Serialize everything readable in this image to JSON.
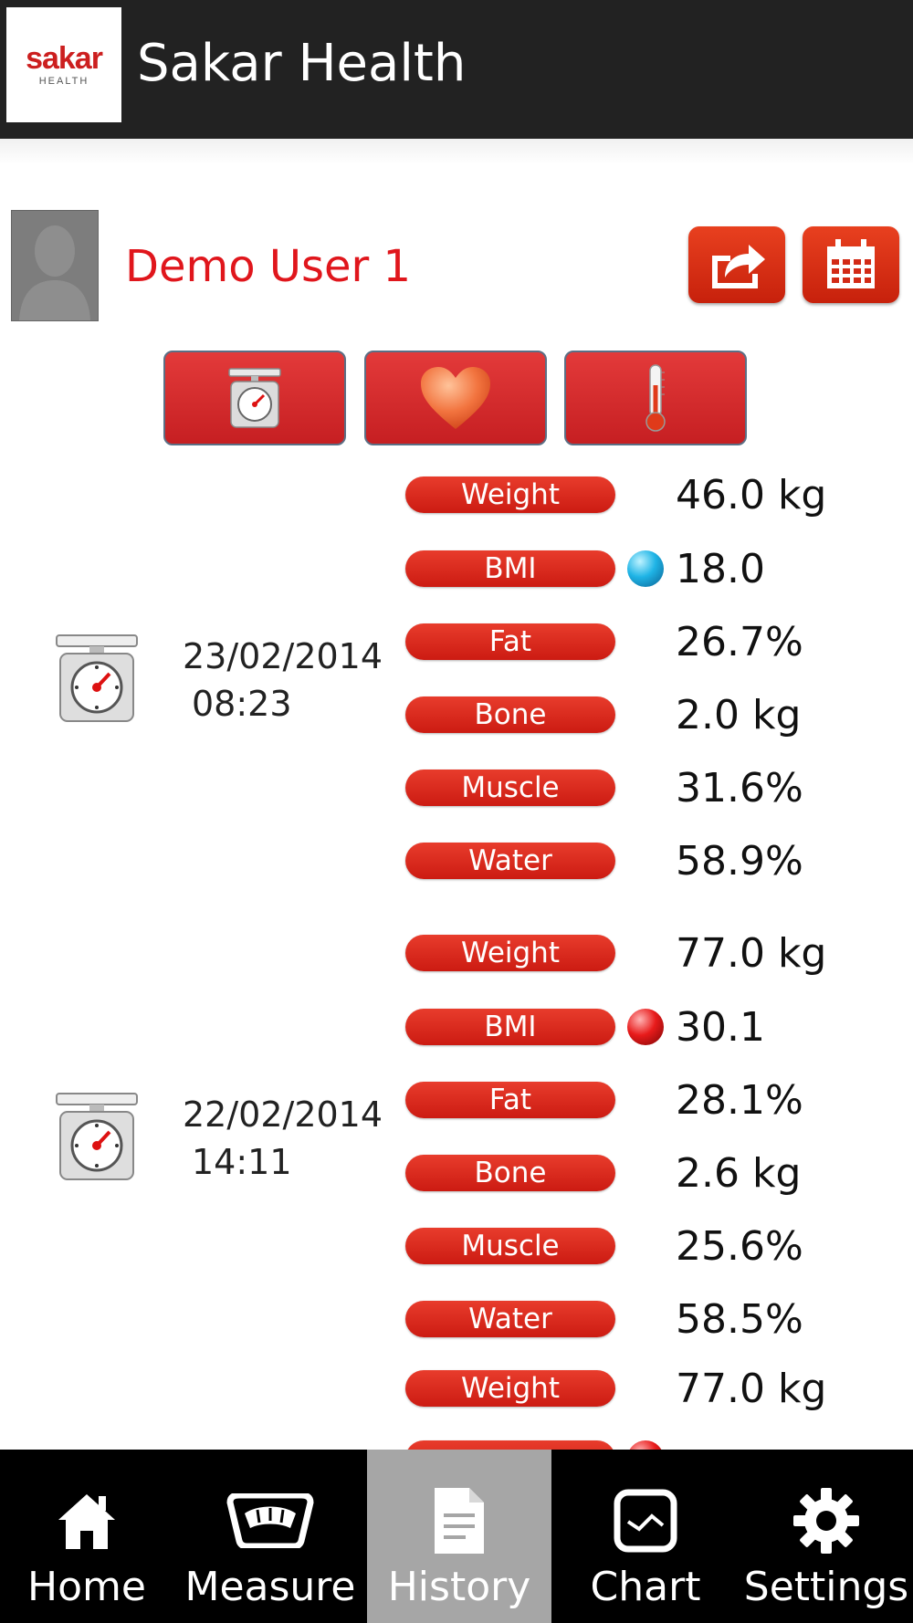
{
  "header": {
    "logo_text": "sakar",
    "logo_sub": "HEALTH",
    "title": "Sakar Health"
  },
  "user": {
    "name": "Demo User 1"
  },
  "toolbar": {
    "share_icon": "share-icon",
    "calendar_icon": "calendar-icon"
  },
  "categories": [
    {
      "icon": "scale-icon",
      "name": "scale"
    },
    {
      "icon": "heart-icon",
      "name": "heart"
    },
    {
      "icon": "thermometer-icon",
      "name": "thermometer"
    }
  ],
  "records": [
    {
      "date": "23/02/2014",
      "time": "08:23",
      "metrics": [
        {
          "label": "Weight",
          "value": "46.0 kg"
        },
        {
          "label": "BMI",
          "value": "18.0",
          "indicator": "blue"
        },
        {
          "label": "Fat",
          "value": "26.7%"
        },
        {
          "label": "Bone",
          "value": "2.0 kg"
        },
        {
          "label": "Muscle",
          "value": "31.6%"
        },
        {
          "label": "Water",
          "value": "58.9%"
        }
      ]
    },
    {
      "date": "22/02/2014",
      "time": "14:11",
      "metrics": [
        {
          "label": "Weight",
          "value": "77.0 kg"
        },
        {
          "label": "BMI",
          "value": "30.1",
          "indicator": "red"
        },
        {
          "label": "Fat",
          "value": "28.1%"
        },
        {
          "label": "Bone",
          "value": "2.6 kg"
        },
        {
          "label": "Muscle",
          "value": "25.6%"
        },
        {
          "label": "Water",
          "value": "58.5%"
        }
      ]
    },
    {
      "date": "",
      "time": "",
      "metrics": [
        {
          "label": "Weight",
          "value": "77.0 kg"
        }
      ]
    }
  ],
  "colors": {
    "accent": "#e0161c",
    "header_bg": "#222222",
    "nav_bg": "#000000",
    "nav_active": "#a6a6a6"
  },
  "nav": [
    {
      "label": "Home",
      "icon": "home-icon",
      "active": false
    },
    {
      "label": "Measure",
      "icon": "scale-dial-icon",
      "active": false
    },
    {
      "label": "History",
      "icon": "document-icon",
      "active": true
    },
    {
      "label": "Chart",
      "icon": "chart-icon",
      "active": false
    },
    {
      "label": "Settings",
      "icon": "gear-icon",
      "active": false
    }
  ]
}
